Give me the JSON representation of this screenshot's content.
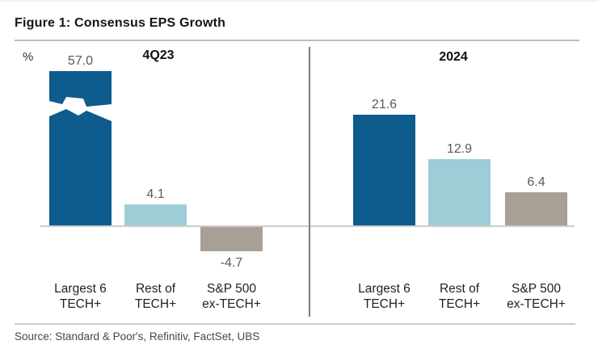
{
  "figure": {
    "title": "Figure 1: Consensus EPS Growth",
    "y_axis_unit": "%",
    "source": "Source: Standard & Poor's, Refinitiv, FactSet, UBS"
  },
  "colors": {
    "dark_blue": "#0d5c8d",
    "light_blue": "#9ecdd8",
    "taupe": "#a89f96",
    "baseline": "#cccccc",
    "divider": "#7d7d7d",
    "value_label": "#595959"
  },
  "chart_data": {
    "type": "bar",
    "title": "Consensus EPS Growth",
    "ylabel": "%",
    "grid": false,
    "legend": "none",
    "categories": [
      "Largest 6\nTECH+",
      "Rest of\nTECH+",
      "S&P 500\nex-TECH+"
    ],
    "bar_colors_by_category": [
      "dark_blue",
      "light_blue",
      "taupe"
    ],
    "panels": [
      {
        "heading": "4Q23",
        "values": [
          57.0,
          4.1,
          -4.7
        ],
        "labels": [
          "57.0",
          "4.1",
          "-4.7"
        ],
        "axis_break_on": [
          true,
          false,
          false
        ]
      },
      {
        "heading": "2024",
        "values": [
          21.6,
          12.9,
          6.4
        ],
        "labels": [
          "21.6",
          "12.9",
          "6.4"
        ],
        "axis_break_on": [
          false,
          false,
          false
        ]
      }
    ]
  }
}
